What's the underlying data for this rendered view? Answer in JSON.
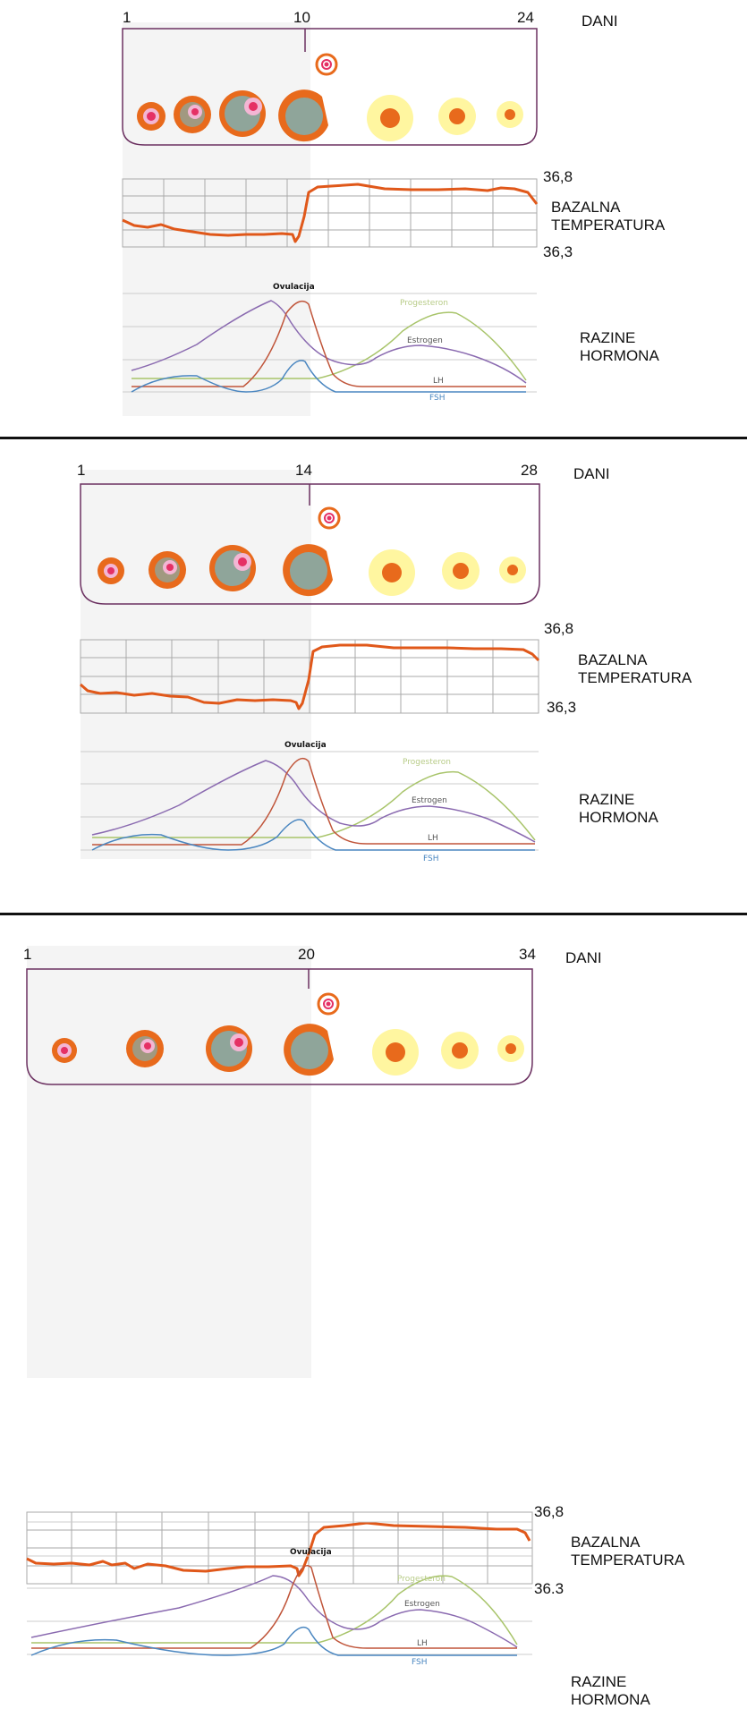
{
  "common": {
    "days_label": "DANI",
    "temp_label_line1": "BAZALNA",
    "temp_label_line2": "TEMPERATURA",
    "temp_max": "36,8",
    "hormone_label_line1": "RAZINE",
    "hormone_label_line2": "HORMONA",
    "ovulation_label": "Ovulacija",
    "hormones": [
      "Progesteron",
      "Estrogen",
      "LH",
      "FSH"
    ],
    "colors": {
      "follicle_orange": "#e86a1c",
      "corpus_yellow": "#fff6a0",
      "frame_purple": "#6b3060",
      "temperature_line": "#e0581a",
      "progesteron": "#a8c46a",
      "estrogen": "#8a6ab0",
      "lh": "#c0553a",
      "fsh": "#4a86c0"
    }
  },
  "panels": [
    {
      "day_start": "1",
      "day_ovulation": "10",
      "day_end": "24",
      "temp_min": "36,3"
    },
    {
      "day_start": "1",
      "day_ovulation": "14",
      "day_end": "28",
      "temp_min": "36,3"
    },
    {
      "day_start": "1",
      "day_ovulation": "20",
      "day_end": "34",
      "temp_min": "36.3"
    }
  ]
}
